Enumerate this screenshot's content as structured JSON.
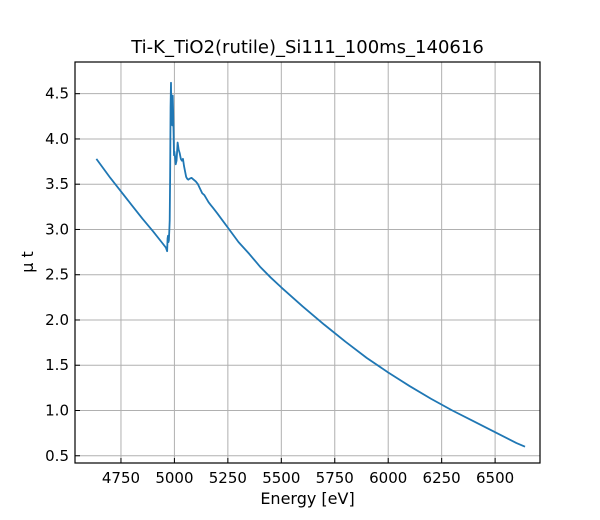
{
  "chart_data": {
    "type": "line",
    "title": "Ti-K_TiO2(rutile)_Si111_100ms_140616",
    "xlabel": "Energy [eV]",
    "ylabel": "μ t",
    "xlim": [
      4535,
      6710
    ],
    "ylim": [
      0.42,
      4.85
    ],
    "xticks": [
      4750,
      5000,
      5250,
      5500,
      5750,
      6000,
      6250,
      6500
    ],
    "yticks": [
      0.5,
      1.0,
      1.5,
      2.0,
      2.5,
      3.0,
      3.5,
      4.0,
      4.5
    ],
    "grid": true,
    "color": "#1f77b4",
    "series": [
      {
        "x": [
          4635,
          4700,
          4750,
          4800,
          4850,
          4900,
          4940,
          4960,
          4966,
          4968,
          4970,
          4972,
          4974,
          4976,
          4978,
          4980,
          4982,
          4984,
          4986,
          4988,
          4990,
          4992,
          4994,
          4996,
          4998,
          5000,
          5003,
          5006,
          5010,
          5015,
          5020,
          5025,
          5030,
          5035,
          5040,
          5045,
          5050,
          5055,
          5060,
          5065,
          5070,
          5080,
          5090,
          5100,
          5110,
          5120,
          5130,
          5140,
          5150,
          5160,
          5170,
          5180,
          5200,
          5225,
          5250,
          5275,
          5300,
          5350,
          5400,
          5450,
          5500,
          5600,
          5700,
          5800,
          5900,
          6000,
          6100,
          6200,
          6300,
          6400,
          6500,
          6600,
          6640
        ],
        "y": [
          3.78,
          3.57,
          3.42,
          3.27,
          3.12,
          2.98,
          2.86,
          2.8,
          2.76,
          2.9,
          2.93,
          2.86,
          2.88,
          2.98,
          3.1,
          3.6,
          4.35,
          4.62,
          4.2,
          4.4,
          4.15,
          4.48,
          4.3,
          4.08,
          3.82,
          3.86,
          3.8,
          3.72,
          3.76,
          3.96,
          3.88,
          3.84,
          3.78,
          3.76,
          3.78,
          3.7,
          3.64,
          3.58,
          3.56,
          3.55,
          3.56,
          3.57,
          3.55,
          3.53,
          3.5,
          3.45,
          3.4,
          3.38,
          3.34,
          3.3,
          3.27,
          3.24,
          3.18,
          3.1,
          3.02,
          2.94,
          2.86,
          2.73,
          2.59,
          2.47,
          2.36,
          2.15,
          1.95,
          1.76,
          1.58,
          1.42,
          1.27,
          1.13,
          1.0,
          0.88,
          0.76,
          0.64,
          0.6
        ]
      }
    ]
  }
}
